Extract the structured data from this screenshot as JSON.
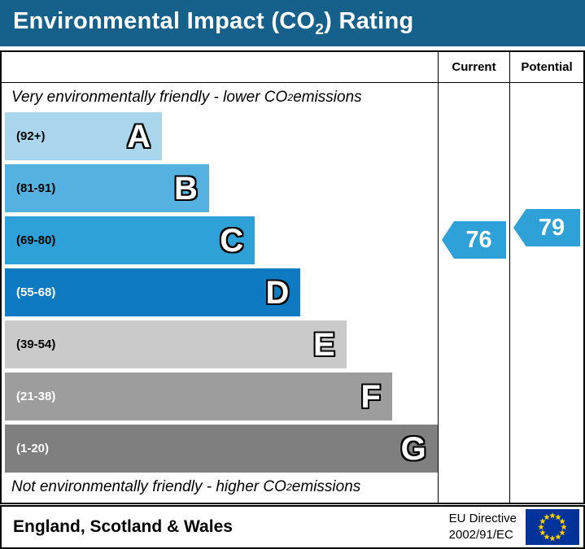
{
  "title": {
    "pre": "Environmental Impact (CO",
    "sub": "2",
    "post": ") Rating"
  },
  "columns": {
    "current": "Current",
    "potential": "Potential"
  },
  "captions": {
    "top": {
      "pre": "Very environmentally friendly - lower CO",
      "sub": "2",
      "post": " emissions"
    },
    "bottom": {
      "pre": "Not environmentally friendly - higher CO",
      "sub": "2",
      "post": " emissions"
    }
  },
  "colors": {
    "header_bg": "#16618c",
    "border": "#000000"
  },
  "bands": [
    {
      "letter": "A",
      "range": "(92+)",
      "color": "#a9d6ec",
      "width_pct": 36,
      "range_text_color": "#000000"
    },
    {
      "letter": "B",
      "range": "(81-91)",
      "color": "#55b1e0",
      "width_pct": 46.8,
      "range_text_color": "#000000"
    },
    {
      "letter": "C",
      "range": "(69-80)",
      "color": "#2ea1d8",
      "width_pct": 57.3,
      "range_text_color": "#000000"
    },
    {
      "letter": "D",
      "range": "(55-68)",
      "color": "#0d7ac1",
      "width_pct": 67.8,
      "range_text_color": "#ffffff"
    },
    {
      "letter": "E",
      "range": "(39-54)",
      "color": "#cacaca",
      "width_pct": 78.3,
      "range_text_color": "#000000"
    },
    {
      "letter": "F",
      "range": "(21-38)",
      "color": "#9d9d9d",
      "width_pct": 88.8,
      "range_text_color": "#ffffff"
    },
    {
      "letter": "G",
      "range": "(1-20)",
      "color": "#7f7f7f",
      "width_pct": 99.2,
      "range_text_color": "#ffffff"
    }
  ],
  "ratings": {
    "current": {
      "value": "76",
      "band": "C",
      "color": "#2ea1d8"
    },
    "potential": {
      "value": "79",
      "band": "C",
      "color": "#2ea1d8"
    }
  },
  "footer": {
    "region": "England, Scotland & Wales",
    "directive": [
      "EU Directive",
      "2002/91/EC"
    ],
    "flag_colors": {
      "field": "#003399",
      "stars": "#ffcc00"
    }
  },
  "chart_data": {
    "type": "bar",
    "title": "Environmental Impact (CO2) Rating",
    "categories": [
      "A",
      "B",
      "C",
      "D",
      "E",
      "F",
      "G"
    ],
    "band_ranges": [
      "92+",
      "81-91",
      "69-80",
      "55-68",
      "39-54",
      "21-38",
      "1-20"
    ],
    "band_colors": [
      "#a9d6ec",
      "#55b1e0",
      "#2ea1d8",
      "#0d7ac1",
      "#cacaca",
      "#9d9d9d",
      "#7f7f7f"
    ],
    "bar_lengths_pct": [
      36,
      46.8,
      57.3,
      67.8,
      78.3,
      88.8,
      99.2
    ],
    "markers": [
      {
        "name": "Current",
        "value": 76,
        "band": "C",
        "color": "#2ea1d8"
      },
      {
        "name": "Potential",
        "value": 79,
        "band": "C",
        "color": "#2ea1d8"
      }
    ],
    "annotation_top": "Very environmentally friendly - lower CO2 emissions",
    "annotation_bottom": "Not environmentally friendly - higher CO2 emissions",
    "region": "England, Scotland & Wales",
    "directive": "EU Directive 2002/91/EC"
  }
}
